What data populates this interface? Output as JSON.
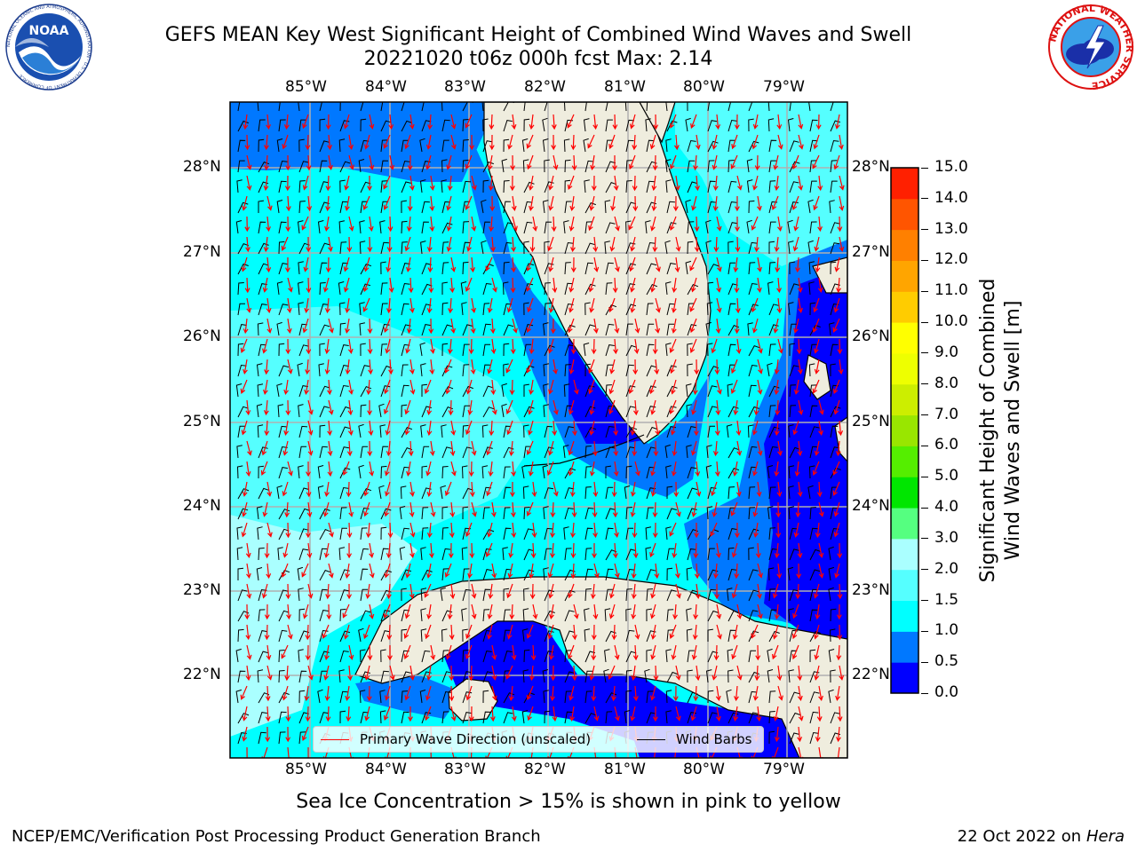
{
  "title_line1": "GEFS MEAN Key West Significant Height of Combined Wind Waves and Swell",
  "title_line2": "20221020 t06z 000h fcst   Max: 2.14",
  "longitude_labels": [
    "85°W",
    "84°W",
    "83°W",
    "82°W",
    "81°W",
    "80°W",
    "79°W"
  ],
  "latitude_labels": [
    "28°N",
    "27°N",
    "26°N",
    "25°N",
    "24°N",
    "23°N",
    "22°N"
  ],
  "colorbar": {
    "label_line1": "Significant Height of Combined",
    "label_line2": "Wind Waves and Swell [m]",
    "ticks": [
      "0.0",
      "0.5",
      "1.0",
      "1.5",
      "2.0",
      "3.0",
      "4.0",
      "5.0",
      "6.0",
      "7.0",
      "8.0",
      "9.0",
      "10.0",
      "11.0",
      "12.0",
      "13.0",
      "14.0",
      "15.0"
    ],
    "colors": [
      "#0000ff",
      "#0078ff",
      "#00ffff",
      "#55ffff",
      "#aaffff",
      "#55ff80",
      "#00e600",
      "#55ee00",
      "#99e600",
      "#ccee00",
      "#eeff00",
      "#ffff00",
      "#ffcc00",
      "#ffa500",
      "#ff8000",
      "#ff5500",
      "#ff2000"
    ]
  },
  "legend": {
    "wave_direction_label": "Primary Wave Direction (unscaled)",
    "wind_barbs_label": "Wind Barbs",
    "wave_direction_color": "#ff0000",
    "wind_barbs_color": "#000000"
  },
  "bottom_caption": "Sea Ice Concentration > 15% is shown in pink to yellow",
  "footer_left": "NCEP/EMC/Verification Post Processing Product Generation Branch",
  "footer_right_date": "22 Oct 2022 on",
  "footer_right_machine": "Hera",
  "logo_left_text": "NOAA",
  "logo_left_ring_text": "NATIONAL OCEANIC AND ATMOSPHERIC ADMINISTRATION · U.S. DEPARTMENT OF COMMERCE",
  "logo_right_ring_text": "NATIONAL WEATHER SERVICE",
  "colors": {
    "land": "#efedde",
    "grid": "#b0b0b0",
    "coast": "#000000"
  }
}
